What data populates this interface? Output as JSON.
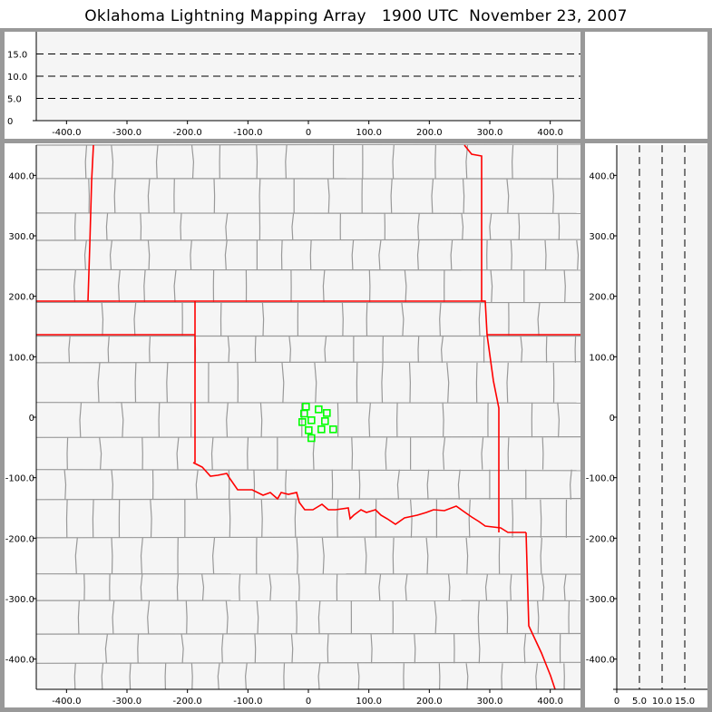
{
  "title": "Oklahoma Lightning Mapping Array   1900 UTC  November 23, 2007",
  "colors": {
    "state_border": "#ff0000",
    "county_border": "#999999",
    "station": "#00ff00",
    "panel_bg": "#f5f5f5",
    "frame": "#999999"
  },
  "chart_data": [
    {
      "panel": "plan-view",
      "type": "scatter",
      "xlim": [
        -450,
        450
      ],
      "ylim": [
        -450,
        450
      ],
      "xticks": [
        {
          "v": -400,
          "label": "-400.0"
        },
        {
          "v": -300,
          "label": "-300.0"
        },
        {
          "v": -200,
          "label": "-200.0"
        },
        {
          "v": -100,
          "label": "-100.0"
        },
        {
          "v": 0,
          "label": "0"
        },
        {
          "v": 100,
          "label": "100.0"
        },
        {
          "v": 200,
          "label": "200.0"
        },
        {
          "v": 300,
          "label": "300.0"
        },
        {
          "v": 400,
          "label": "400.0"
        }
      ],
      "yticks": [
        {
          "v": 400,
          "label": "400.0"
        },
        {
          "v": 300,
          "label": "300.0"
        },
        {
          "v": 200,
          "label": "200.0"
        },
        {
          "v": 100,
          "label": "100.0"
        },
        {
          "v": 0,
          "label": "0"
        },
        {
          "v": -100,
          "label": "-100.0"
        },
        {
          "v": -200,
          "label": "-200.0"
        },
        {
          "v": -300,
          "label": "-300.0"
        },
        {
          "v": -400,
          "label": "-400.0"
        }
      ],
      "stations": [
        [
          -4,
          17.5
        ],
        [
          -7,
          6
        ],
        [
          17,
          13
        ],
        [
          30.5,
          7
        ],
        [
          -10,
          -8
        ],
        [
          5,
          -5
        ],
        [
          27.5,
          -6.5
        ],
        [
          0.5,
          -21.5
        ],
        [
          21.5,
          -20
        ],
        [
          41,
          -20
        ],
        [
          5,
          -34.5
        ]
      ],
      "marker": "hollow-square"
    },
    {
      "panel": "east-west-altitude",
      "type": "line",
      "xlim": [
        -450,
        450
      ],
      "ylim": [
        0,
        20
      ],
      "xticks": [
        {
          "v": -400,
          "label": "-400.0"
        },
        {
          "v": -300,
          "label": "-300.0"
        },
        {
          "v": -200,
          "label": "-200.0"
        },
        {
          "v": -100,
          "label": "-100.0"
        },
        {
          "v": 0,
          "label": "0"
        },
        {
          "v": 100,
          "label": "100.0"
        },
        {
          "v": 200,
          "label": "200.0"
        },
        {
          "v": 300,
          "label": "300.0"
        },
        {
          "v": 400,
          "label": "400.0"
        }
      ],
      "yticks": [
        {
          "v": 0,
          "label": "0"
        },
        {
          "v": 5,
          "label": "5.0"
        },
        {
          "v": 10,
          "label": "10.0"
        },
        {
          "v": 15,
          "label": "15.0"
        }
      ],
      "dashed_gridlines": [
        5,
        10,
        15
      ]
    },
    {
      "panel": "north-south-altitude",
      "type": "line",
      "xlim": [
        0,
        20
      ],
      "ylim": [
        -450,
        450
      ],
      "xticks": [
        {
          "v": 0,
          "label": "0"
        },
        {
          "v": 5,
          "label": "5.0"
        },
        {
          "v": 10,
          "label": "10.0"
        },
        {
          "v": 15,
          "label": "15.0"
        }
      ],
      "yticks": [
        {
          "v": 400,
          "label": "400.0"
        },
        {
          "v": 300,
          "label": "300.0"
        },
        {
          "v": 200,
          "label": "200.0"
        },
        {
          "v": 100,
          "label": "100.0"
        },
        {
          "v": 0,
          "label": "0"
        },
        {
          "v": -100,
          "label": "-100.0"
        },
        {
          "v": -200,
          "label": "-200.0"
        },
        {
          "v": -300,
          "label": "-300.0"
        },
        {
          "v": -400,
          "label": "-400.0"
        }
      ],
      "dashed_gridlines": [
        5,
        10,
        15
      ]
    }
  ]
}
